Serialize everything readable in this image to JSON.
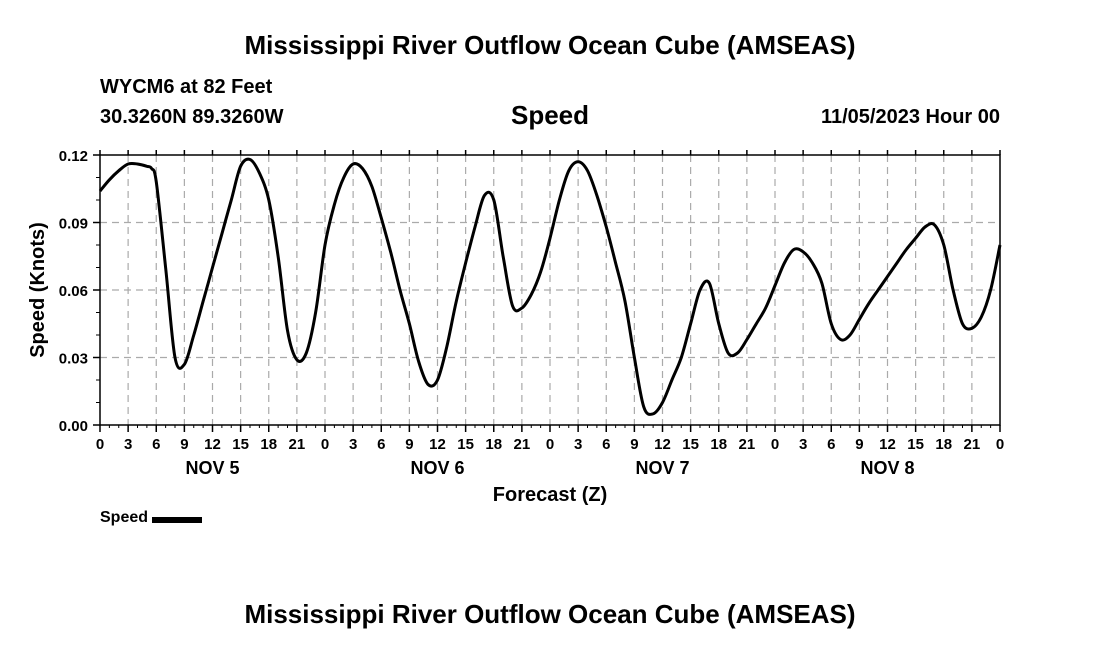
{
  "page": {
    "title": "Mississippi River Outflow Ocean Cube (AMSEAS)",
    "station": "WYCM6 at 82 Feet",
    "coords": "30.3260N  89.3260W",
    "variable": "Speed",
    "datetime": "11/05/2023 Hour 00",
    "repeat_title": "Mississippi River Outflow Ocean Cube (AMSEAS)"
  },
  "chart_data": {
    "type": "line",
    "xlabel": "Forecast (Z)",
    "ylabel": "Speed (Knots)",
    "ylim": [
      0,
      0.12
    ],
    "yticks": [
      "0.00",
      "0.03",
      "0.06",
      "0.09",
      "0.12"
    ],
    "xlim_hours": [
      0,
      96
    ],
    "xtick_labels": [
      "0",
      "3",
      "6",
      "9",
      "12",
      "15",
      "18",
      "21",
      "0",
      "3",
      "6",
      "9",
      "12",
      "15",
      "18",
      "21",
      "0",
      "3",
      "6",
      "9",
      "12",
      "15",
      "18",
      "21",
      "0",
      "3",
      "6",
      "9",
      "12",
      "15",
      "18",
      "21",
      "0"
    ],
    "day_labels": [
      "NOV 5",
      "NOV 6",
      "NOV 7",
      "NOV 8"
    ],
    "grid": true,
    "legend": "bottom-left",
    "series": [
      {
        "name": "Speed",
        "color": "#000000",
        "x": [
          0,
          1,
          2,
          3,
          4,
          5,
          5.5,
          6,
          7,
          8,
          9,
          10,
          11,
          12,
          13,
          14,
          15,
          16,
          17,
          18,
          19,
          20,
          21,
          22,
          23,
          24,
          25,
          26,
          27,
          28,
          29,
          30,
          31,
          32,
          33,
          34,
          35,
          36,
          37,
          38,
          39,
          40,
          41,
          42,
          43,
          44,
          45,
          46,
          47,
          48,
          49,
          50,
          51,
          52,
          53,
          54,
          55,
          56,
          57,
          58,
          59,
          60,
          61,
          62,
          63,
          64,
          65,
          66,
          67,
          68,
          69,
          70,
          71,
          72,
          73,
          74,
          75,
          76,
          77,
          78,
          79,
          80,
          81,
          82,
          83,
          84,
          85,
          86,
          87,
          88,
          89,
          90,
          91,
          92,
          93,
          94,
          95,
          96
        ],
        "y": [
          0.104,
          0.109,
          0.113,
          0.116,
          0.116,
          0.115,
          0.114,
          0.108,
          0.07,
          0.03,
          0.027,
          0.04,
          0.055,
          0.07,
          0.085,
          0.1,
          0.115,
          0.118,
          0.112,
          0.1,
          0.075,
          0.042,
          0.029,
          0.032,
          0.05,
          0.08,
          0.098,
          0.11,
          0.116,
          0.114,
          0.106,
          0.092,
          0.077,
          0.06,
          0.045,
          0.028,
          0.018,
          0.02,
          0.035,
          0.055,
          0.072,
          0.088,
          0.102,
          0.1,
          0.075,
          0.053,
          0.052,
          0.058,
          0.068,
          0.083,
          0.1,
          0.113,
          0.117,
          0.113,
          0.102,
          0.088,
          0.072,
          0.055,
          0.03,
          0.008,
          0.005,
          0.01,
          0.02,
          0.03,
          0.045,
          0.06,
          0.063,
          0.045,
          0.032,
          0.032,
          0.038,
          0.045,
          0.052,
          0.062,
          0.072,
          0.078,
          0.077,
          0.072,
          0.063,
          0.045,
          0.038,
          0.04,
          0.047,
          0.054,
          0.06,
          0.066,
          0.072,
          0.078,
          0.083,
          0.088,
          0.089,
          0.08,
          0.06,
          0.045,
          0.043,
          0.048,
          0.06,
          0.08
        ]
      }
    ]
  }
}
